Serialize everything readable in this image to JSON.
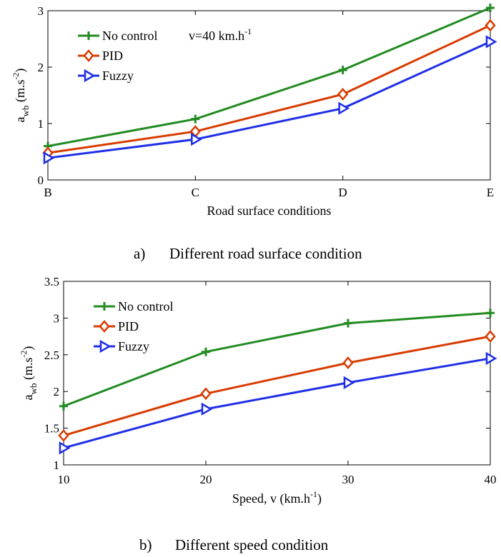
{
  "figures": [
    {
      "caption_marker": "a)",
      "caption_text": "Different road surface condition"
    },
    {
      "caption_marker": "b)",
      "caption_text": "Different speed condition"
    }
  ],
  "chart_data": [
    {
      "type": "line",
      "categories": [
        "B",
        "C",
        "D",
        "E"
      ],
      "xlabel": "Road surface conditions",
      "ylabel": {
        "base": "a",
        "subscript": "wb",
        "unit": "(m.s",
        "unit_exp": "-2",
        "unit_close": ")"
      },
      "ylim": [
        0,
        3
      ],
      "yticks": [
        "0",
        "1",
        "2",
        "3"
      ],
      "annotation": {
        "text": "v=40 km.h",
        "sup": "-1"
      },
      "legend_position": "top-left",
      "grid": false,
      "series": [
        {
          "name": "No control",
          "color": "#228b22",
          "marker": "plus",
          "values": [
            0.6,
            1.08,
            1.95,
            3.05
          ]
        },
        {
          "name": "PID",
          "color": "#d83b01",
          "marker": "diamond",
          "values": [
            0.48,
            0.86,
            1.52,
            2.74
          ]
        },
        {
          "name": "Fuzzy",
          "color": "#1f2fe6",
          "marker": "triangle-right",
          "values": [
            0.39,
            0.72,
            1.27,
            2.45
          ]
        }
      ]
    },
    {
      "type": "line",
      "x": [
        10,
        20,
        30,
        40
      ],
      "xticks": [
        "10",
        "20",
        "30",
        "40"
      ],
      "xlabel": {
        "text": "Speed, v (km.h",
        "sup": "-1",
        "close": ")"
      },
      "ylabel": {
        "base": "a",
        "subscript": "wb",
        "unit": "(m.s",
        "unit_exp": "-2",
        "unit_close": ")"
      },
      "xlim": [
        10,
        40
      ],
      "ylim": [
        1,
        3.5
      ],
      "yticks": [
        "1",
        "1.5",
        "2",
        "2.5",
        "3",
        "3.5"
      ],
      "legend_position": "top-left",
      "grid": false,
      "series": [
        {
          "name": "No control",
          "color": "#228b22",
          "marker": "plus",
          "values": [
            1.8,
            2.54,
            2.93,
            3.07
          ]
        },
        {
          "name": "PID",
          "color": "#d83b01",
          "marker": "diamond",
          "values": [
            1.4,
            1.97,
            2.39,
            2.75
          ]
        },
        {
          "name": "Fuzzy",
          "color": "#1f2fe6",
          "marker": "triangle-right",
          "values": [
            1.23,
            1.76,
            2.12,
            2.45
          ]
        }
      ]
    }
  ]
}
